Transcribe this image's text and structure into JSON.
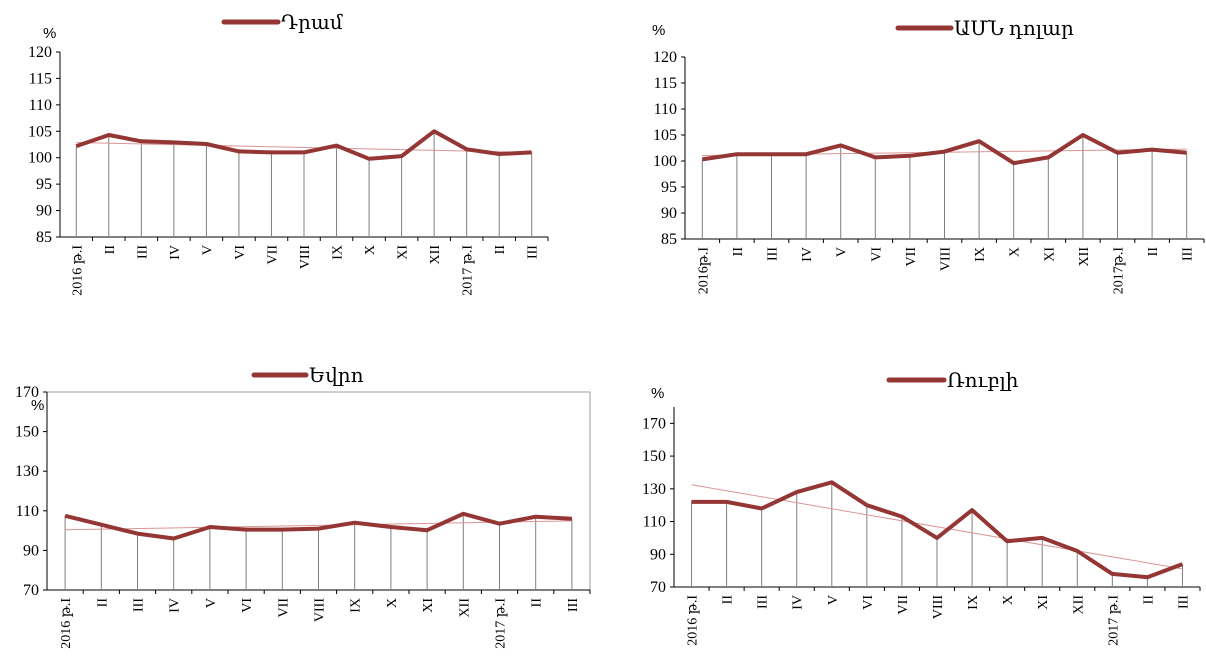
{
  "colors": {
    "series": "#943634",
    "trend": "#d99694",
    "box": "#9e9e9e"
  },
  "chart_data": [
    {
      "type": "line",
      "title": "",
      "ylabel": "%",
      "ylim": [
        85,
        120
      ],
      "yticks": [
        85,
        90,
        95,
        100,
        105,
        110,
        115,
        120
      ],
      "categories": [
        "2016 թ.I",
        "II",
        "III",
        "IV",
        "V",
        "VI",
        "VII",
        "VIII",
        "IX",
        "X",
        "XI",
        "XII",
        "2017 թ.I",
        "II",
        "III"
      ],
      "series": [
        {
          "name": "Դրամ",
          "values": [
            102.2,
            104.3,
            103.1,
            102.9,
            102.6,
            101.2,
            101.0,
            101.0,
            102.3,
            99.8,
            100.3,
            105.0,
            101.6,
            100.7,
            101.0
          ]
        }
      ],
      "trendline": "linear",
      "legend": "top"
    },
    {
      "type": "line",
      "title": "",
      "ylabel": "%",
      "ylim": [
        85,
        120
      ],
      "yticks": [
        85,
        90,
        95,
        100,
        105,
        110,
        115,
        120
      ],
      "categories": [
        "2016թ.I",
        "II",
        "III",
        "IV",
        "V",
        "VI",
        "VII",
        "VIII",
        "IX",
        "X",
        "XI",
        "XII",
        "2017թ.I",
        "II",
        "III"
      ],
      "series": [
        {
          "name": "ԱՄՆ դոլար",
          "values": [
            100.3,
            101.3,
            101.3,
            101.3,
            103.0,
            100.7,
            101.0,
            101.8,
            103.8,
            99.6,
            100.7,
            105.0,
            101.6,
            102.2,
            101.6
          ]
        }
      ],
      "trendline": "linear",
      "legend": "top"
    },
    {
      "type": "line",
      "title": "",
      "ylabel": "%",
      "ylim": [
        70,
        170
      ],
      "yticks": [
        70,
        90,
        110,
        130,
        150,
        170
      ],
      "categories": [
        "2016 թ.I",
        "II",
        "III",
        "IV",
        "V",
        "VI",
        "VII",
        "VIII",
        "IX",
        "X",
        "XI",
        "XII",
        "2017 թ.I",
        "II",
        "III"
      ],
      "series": [
        {
          "name": "Եվրո",
          "values": [
            107.5,
            103.0,
            98.5,
            96.0,
            101.8,
            100.5,
            100.5,
            101.0,
            104.0,
            101.8,
            100.2,
            108.5,
            103.5,
            107.0,
            106.0
          ]
        }
      ],
      "trendline": "linear",
      "legend": "top"
    },
    {
      "type": "line",
      "title": "",
      "ylabel": "%",
      "ylim": [
        70,
        180
      ],
      "yticks": [
        70,
        90,
        110,
        130,
        150,
        170
      ],
      "categories": [
        "2016 թ.I",
        "II",
        "III",
        "IV",
        "V",
        "VI",
        "VII",
        "VIII",
        "IX",
        "X",
        "XI",
        "XII",
        "2017 թ.I",
        "II",
        "III"
      ],
      "series": [
        {
          "name": "Ռուբլի",
          "values": [
            122,
            122,
            118,
            128,
            134,
            120,
            113,
            100,
            117,
            98,
            100,
            92,
            78,
            76,
            84
          ]
        }
      ],
      "trendline": "linear",
      "legend": "top"
    }
  ]
}
